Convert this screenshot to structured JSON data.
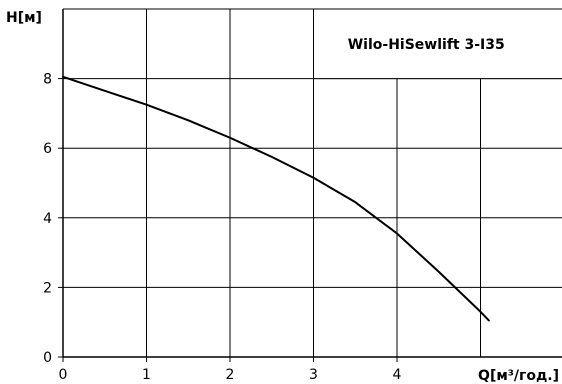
{
  "chart_data": {
    "type": "line",
    "title": "",
    "xlabel": "Q[м³/год.]",
    "ylabel": "H[м]",
    "xlim": [
      0,
      6
    ],
    "ylim": [
      0,
      10
    ],
    "x_ticks": [
      0,
      1,
      2,
      3,
      4
    ],
    "y_ticks": [
      0,
      2,
      4,
      6,
      8
    ],
    "grid": true,
    "legend_position": "top-right",
    "series": [
      {
        "name": "Wilo-HiSewlift 3-I35",
        "color": "#000000",
        "points": [
          {
            "x": 0.0,
            "y": 8.05
          },
          {
            "x": 0.5,
            "y": 7.65
          },
          {
            "x": 1.0,
            "y": 7.25
          },
          {
            "x": 1.5,
            "y": 6.8
          },
          {
            "x": 2.0,
            "y": 6.3
          },
          {
            "x": 2.5,
            "y": 5.75
          },
          {
            "x": 3.0,
            "y": 5.15
          },
          {
            "x": 3.5,
            "y": 4.45
          },
          {
            "x": 4.0,
            "y": 3.55
          },
          {
            "x": 4.5,
            "y": 2.45
          },
          {
            "x": 5.0,
            "y": 1.3
          },
          {
            "x": 5.1,
            "y": 1.05
          }
        ]
      }
    ]
  }
}
